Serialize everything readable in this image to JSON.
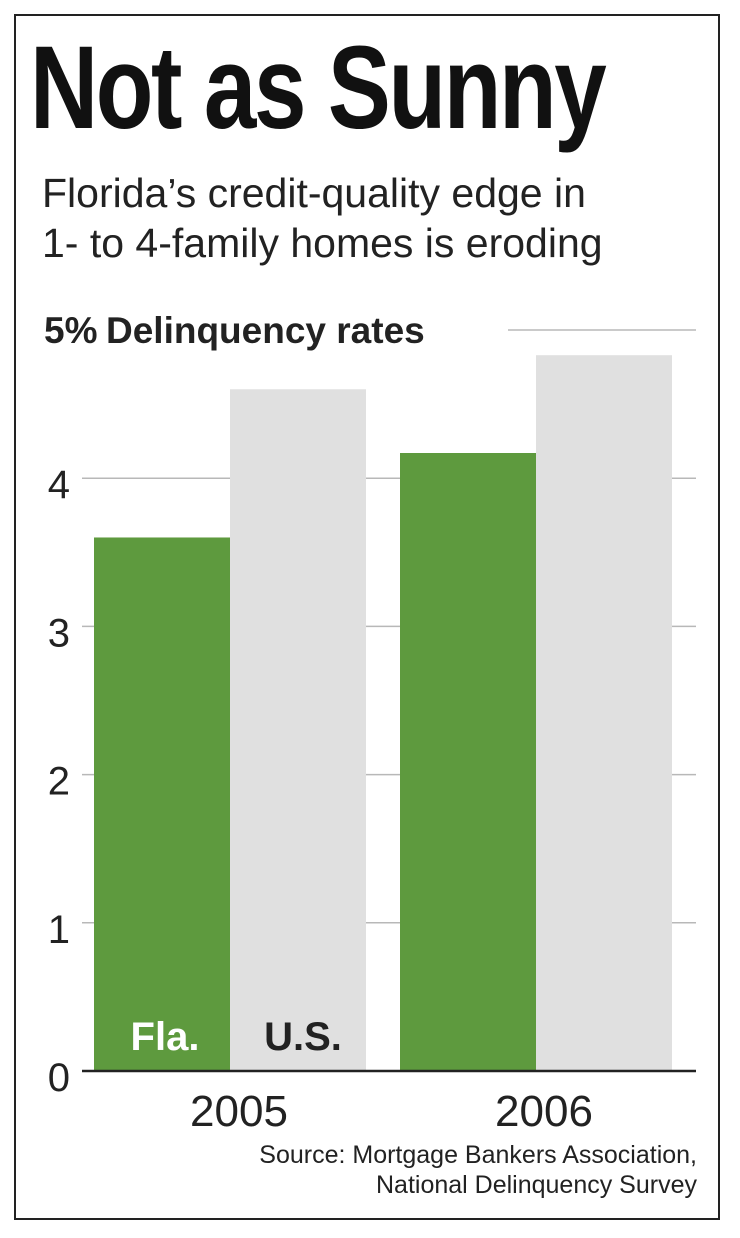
{
  "header": {
    "title": "Not as Sunny",
    "subtitle_lines": [
      "Florida’s credit-quality edge in",
      "1- to 4-family homes is eroding"
    ]
  },
  "chart_data": {
    "type": "bar",
    "ylabel": "Delinquency rates",
    "y_top_tick_label": "5%",
    "categories": [
      "2005",
      "2006"
    ],
    "series": [
      {
        "name": "Fla.",
        "color": "#5e9a3e",
        "values": [
          3.6,
          4.17
        ]
      },
      {
        "name": "U.S.",
        "color": "#e0e0e0",
        "values": [
          4.6,
          4.83
        ]
      }
    ],
    "ylim": [
      0,
      5
    ],
    "yticks": [
      0,
      1,
      2,
      3,
      4,
      5
    ],
    "ytick_labels": [
      "0",
      "1",
      "2",
      "3",
      "4",
      ""
    ],
    "grid": true,
    "legend": "inside bars at bottom of first category"
  },
  "source": {
    "lines": [
      "Source: Mortgage Bankers Association,",
      "National Delinquency Survey"
    ]
  }
}
